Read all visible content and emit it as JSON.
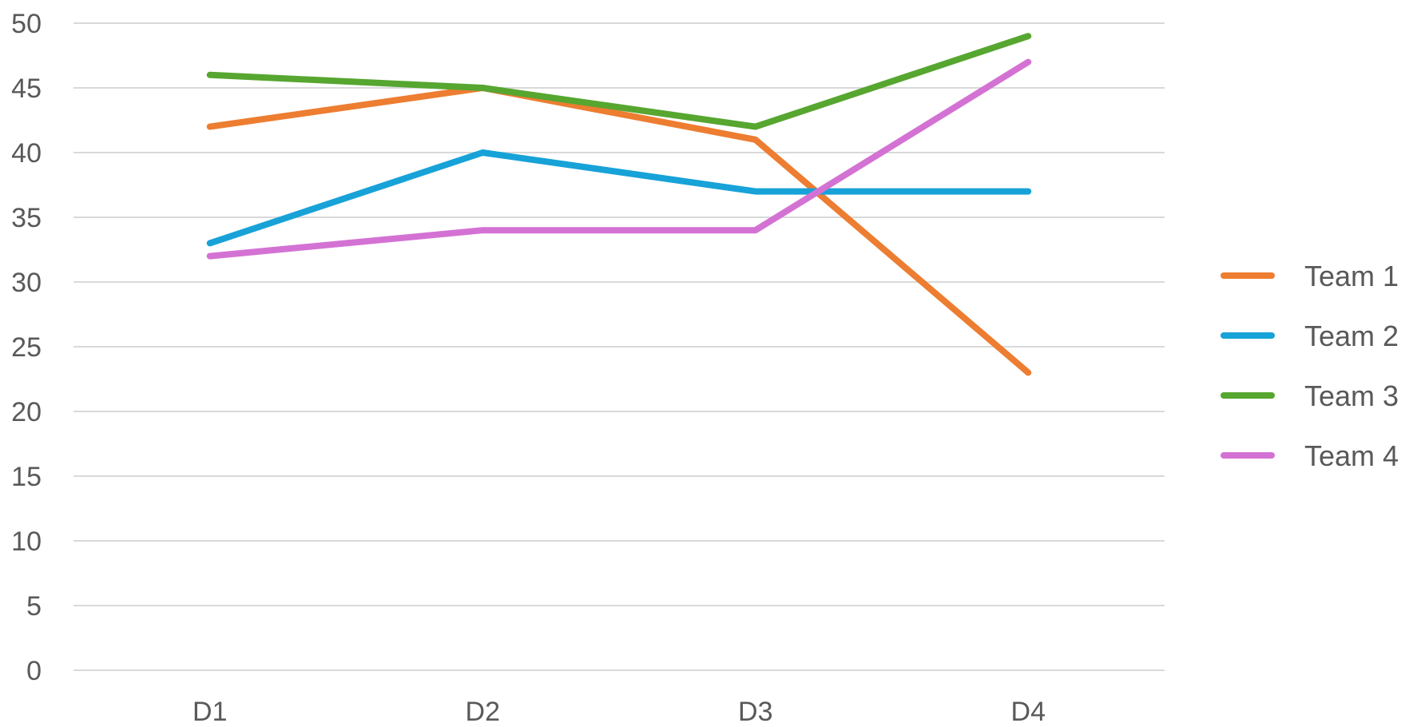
{
  "chart_data": {
    "type": "line",
    "categories": [
      "D1",
      "D2",
      "D3",
      "D4"
    ],
    "series": [
      {
        "name": "Team 1",
        "color": "#ED7D31",
        "values": [
          42,
          45,
          41,
          23
        ]
      },
      {
        "name": "Team 2",
        "color": "#17A2D8",
        "values": [
          33,
          40,
          37,
          37
        ]
      },
      {
        "name": "Team 3",
        "color": "#56A630",
        "values": [
          46,
          45,
          42,
          49
        ]
      },
      {
        "name": "Team 4",
        "color": "#D472D4",
        "values": [
          32,
          34,
          34,
          47
        ]
      }
    ],
    "yticks": [
      "0",
      "5",
      "10",
      "15",
      "20",
      "25",
      "30",
      "35",
      "40",
      "45",
      "50"
    ],
    "ylim": [
      0,
      50
    ],
    "grid": true,
    "gridColor": "#D9D9D9",
    "legend_position": "right"
  }
}
